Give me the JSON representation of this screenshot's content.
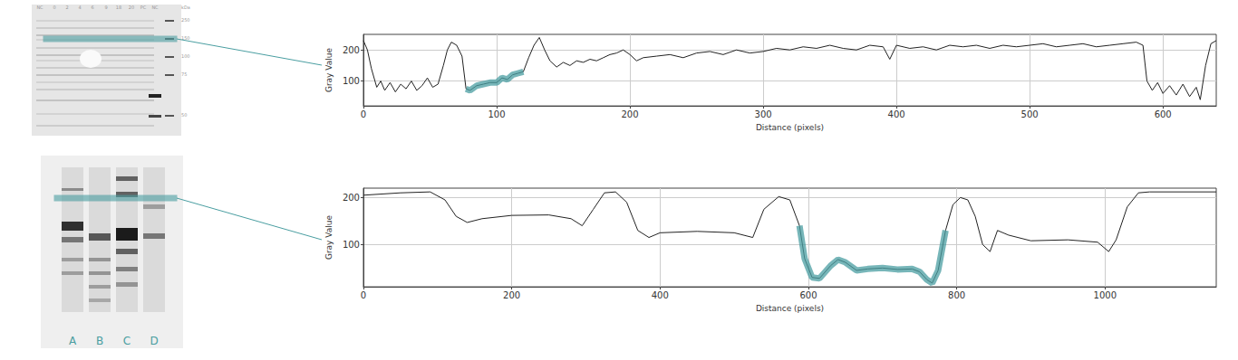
{
  "chart_data": [
    {
      "type": "line",
      "x_label": "Distance (pixels)",
      "y_label": "Gray Value",
      "color": "#222222",
      "grid": true,
      "xlim": [
        0,
        640
      ],
      "xticks": [
        0,
        100,
        200,
        300,
        400,
        500,
        600
      ],
      "ylim": [
        20,
        250
      ],
      "yticks": [
        100,
        200
      ],
      "selection": [
        77,
        120
      ],
      "x": [
        0,
        3,
        6,
        10,
        13,
        16,
        20,
        24,
        28,
        32,
        36,
        40,
        44,
        48,
        52,
        56,
        60,
        63,
        66,
        70,
        74,
        77,
        80,
        85,
        90,
        95,
        100,
        104,
        108,
        112,
        116,
        120,
        124,
        128,
        132,
        136,
        140,
        145,
        150,
        155,
        160,
        165,
        170,
        175,
        180,
        185,
        190,
        195,
        200,
        205,
        210,
        220,
        230,
        240,
        250,
        260,
        270,
        280,
        290,
        300,
        310,
        320,
        330,
        340,
        350,
        360,
        370,
        380,
        390,
        395,
        400,
        410,
        420,
        430,
        440,
        450,
        460,
        470,
        480,
        490,
        500,
        510,
        520,
        530,
        540,
        550,
        560,
        570,
        580,
        585,
        588,
        592,
        596,
        600,
        605,
        610,
        615,
        620,
        625,
        628,
        632,
        636,
        640
      ],
      "values": [
        230,
        200,
        140,
        80,
        100,
        70,
        95,
        65,
        90,
        75,
        100,
        70,
        85,
        110,
        80,
        90,
        150,
        200,
        225,
        215,
        180,
        75,
        70,
        85,
        90,
        95,
        95,
        110,
        105,
        120,
        125,
        130,
        175,
        215,
        240,
        200,
        165,
        145,
        160,
        150,
        165,
        160,
        170,
        165,
        175,
        185,
        190,
        200,
        185,
        165,
        175,
        180,
        185,
        175,
        190,
        195,
        185,
        200,
        190,
        195,
        205,
        200,
        210,
        205,
        215,
        205,
        200,
        215,
        210,
        170,
        215,
        205,
        210,
        200,
        215,
        210,
        215,
        205,
        215,
        210,
        215,
        220,
        210,
        215,
        220,
        210,
        215,
        220,
        225,
        215,
        100,
        70,
        95,
        60,
        85,
        55,
        90,
        50,
        80,
        40,
        150,
        220,
        230
      ]
    },
    {
      "type": "line",
      "x_label": "Distance (pixels)",
      "y_label": "Gray Value",
      "color": "#222222",
      "grid": true,
      "xlim": [
        0,
        1150
      ],
      "xticks": [
        0,
        200,
        400,
        600,
        800,
        1000
      ],
      "ylim": [
        10,
        220
      ],
      "yticks": [
        100,
        200
      ],
      "selection": [
        588,
        785
      ],
      "x": [
        0,
        50,
        90,
        110,
        125,
        140,
        160,
        200,
        250,
        280,
        295,
        310,
        325,
        340,
        355,
        370,
        385,
        400,
        450,
        500,
        525,
        540,
        560,
        575,
        588,
        595,
        605,
        615,
        630,
        640,
        650,
        665,
        680,
        700,
        720,
        740,
        750,
        760,
        767,
        775,
        785,
        795,
        805,
        815,
        825,
        835,
        845,
        855,
        870,
        900,
        950,
        990,
        1005,
        1015,
        1030,
        1045,
        1060,
        1150
      ],
      "values": [
        205,
        210,
        212,
        195,
        160,
        147,
        155,
        162,
        163,
        155,
        140,
        175,
        210,
        212,
        190,
        130,
        115,
        125,
        128,
        125,
        115,
        175,
        202,
        195,
        140,
        70,
        30,
        28,
        55,
        68,
        62,
        45,
        48,
        50,
        47,
        48,
        42,
        25,
        18,
        45,
        130,
        185,
        200,
        195,
        160,
        100,
        85,
        130,
        120,
        108,
        110,
        105,
        85,
        110,
        180,
        210,
        212,
        212
      ]
    }
  ],
  "gels": [
    {
      "lane_labels": [
        "NC",
        "0",
        "2",
        "4",
        "6",
        "9",
        "18",
        "20",
        "PC",
        "NC"
      ],
      "unit": "kDa",
      "marker_labels": [
        250,
        150,
        100,
        75,
        50
      ]
    },
    {
      "lane_labels": [
        "A",
        "B",
        "C",
        "D"
      ]
    }
  ]
}
